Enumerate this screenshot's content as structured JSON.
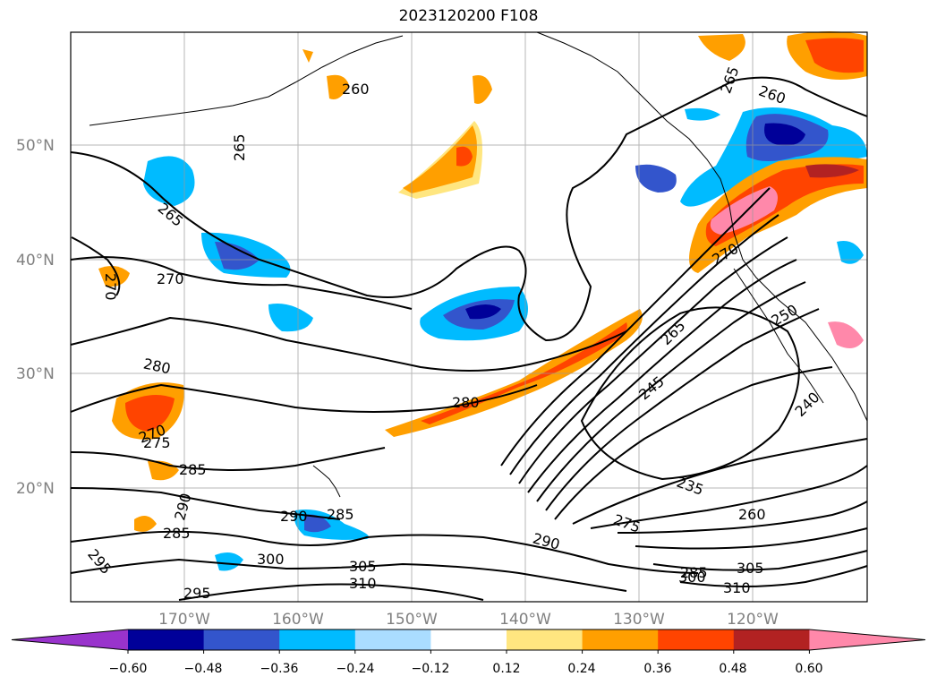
{
  "title": "2023120200 F108",
  "lat_labels": [
    "50°N",
    "40°N",
    "30°N",
    "20°N"
  ],
  "lon_labels": [
    "170°W",
    "160°W",
    "150°W",
    "140°W",
    "130°W",
    "120°W"
  ],
  "colorbar": {
    "ticks": [
      "−0.60",
      "−0.48",
      "−0.36",
      "−0.24",
      "−0.12",
      "0.12",
      "0.24",
      "0.36",
      "0.48",
      "0.60"
    ],
    "colors": [
      "#9933cc",
      "#000099",
      "#3355cc",
      "#00bbff",
      "#aaddff",
      "#ffffff",
      "#ffe680",
      "#ff9f00",
      "#ff4400",
      "#b22222",
      "#ff88aa"
    ]
  },
  "contour_labels": [
    "260",
    "265",
    "265",
    "260",
    "265",
    "270",
    "270",
    "280",
    "280",
    "270",
    "275",
    "285",
    "290",
    "285",
    "295",
    "295",
    "290",
    "285",
    "300",
    "305",
    "310",
    "290",
    "265",
    "245",
    "250",
    "240",
    "235",
    "275",
    "260",
    "300",
    "305",
    "310",
    "270",
    "285"
  ]
}
